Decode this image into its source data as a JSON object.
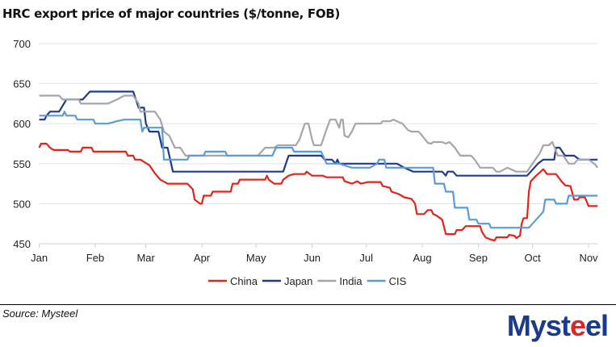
{
  "chart_data": {
    "type": "line",
    "title": "HRC export price of major countries ($/tonne, FOB)",
    "xlabel": "",
    "ylabel": "",
    "ylim": [
      450,
      700
    ],
    "yticks": [
      450,
      500,
      550,
      600,
      650,
      700
    ],
    "xlim": [
      "01-01",
      "11-06"
    ],
    "xticks": [
      {
        "date": "01-01",
        "label": "Jan"
      },
      {
        "date": "02-01",
        "label": "Feb"
      },
      {
        "date": "03-01",
        "label": "Mar"
      },
      {
        "date": "04-01",
        "label": "Apr"
      },
      {
        "date": "05-01",
        "label": "May"
      },
      {
        "date": "06-01",
        "label": "Jun"
      },
      {
        "date": "07-01",
        "label": "Jul"
      },
      {
        "date": "08-01",
        "label": "Aug"
      },
      {
        "date": "09-01",
        "label": "Sep"
      },
      {
        "date": "10-01",
        "label": "Oct"
      },
      {
        "date": "11-01",
        "label": "Nov"
      }
    ],
    "grid": "horizontal",
    "legend_position": "bottom",
    "series": [
      {
        "name": "China",
        "color": "#e0251b",
        "points": [
          [
            "01-01",
            570
          ],
          [
            "01-02",
            575
          ],
          [
            "01-05",
            575
          ],
          [
            "01-07",
            570
          ],
          [
            "01-09",
            567
          ],
          [
            "01-17",
            567
          ],
          [
            "01-18",
            565
          ],
          [
            "01-24",
            565
          ],
          [
            "01-25",
            570
          ],
          [
            "01-30",
            570
          ],
          [
            "01-31",
            565
          ],
          [
            "02-18",
            565
          ],
          [
            "02-19",
            560
          ],
          [
            "02-22",
            560
          ],
          [
            "02-23",
            555
          ],
          [
            "02-26",
            555
          ],
          [
            "03-03",
            548
          ],
          [
            "03-06",
            538
          ],
          [
            "03-09",
            530
          ],
          [
            "03-13",
            525
          ],
          [
            "03-24",
            525
          ],
          [
            "03-27",
            518
          ],
          [
            "03-28",
            505
          ],
          [
            "03-31",
            500
          ],
          [
            "04-01",
            500
          ],
          [
            "04-02",
            510
          ],
          [
            "04-06",
            510
          ],
          [
            "04-07",
            515
          ],
          [
            "04-17",
            515
          ],
          [
            "04-18",
            525
          ],
          [
            "04-21",
            525
          ],
          [
            "04-22",
            530
          ],
          [
            "05-06",
            530
          ],
          [
            "05-07",
            535
          ],
          [
            "05-08",
            530
          ],
          [
            "05-11",
            525
          ],
          [
            "05-15",
            525
          ],
          [
            "05-16",
            530
          ],
          [
            "05-19",
            535
          ],
          [
            "05-22",
            537
          ],
          [
            "05-28",
            537
          ],
          [
            "05-29",
            540
          ],
          [
            "06-01",
            535
          ],
          [
            "06-07",
            535
          ],
          [
            "06-09",
            533
          ],
          [
            "06-18",
            533
          ],
          [
            "06-19",
            528
          ],
          [
            "06-23",
            525
          ],
          [
            "06-26",
            528
          ],
          [
            "06-28",
            525
          ],
          [
            "07-02",
            527
          ],
          [
            "07-09",
            527
          ],
          [
            "07-10",
            522
          ],
          [
            "07-14",
            520
          ],
          [
            "07-15",
            515
          ],
          [
            "07-19",
            512
          ],
          [
            "07-22",
            508
          ],
          [
            "07-26",
            506
          ],
          [
            "07-28",
            500
          ],
          [
            "07-29",
            487
          ],
          [
            "08-02",
            487
          ],
          [
            "08-04",
            492
          ],
          [
            "08-06",
            492
          ],
          [
            "08-07",
            487
          ],
          [
            "08-09",
            485
          ],
          [
            "08-12",
            480
          ],
          [
            "08-14",
            462
          ],
          [
            "08-19",
            462
          ],
          [
            "08-20",
            467
          ],
          [
            "08-23",
            467
          ],
          [
            "08-25",
            472
          ],
          [
            "09-02",
            472
          ],
          [
            "09-03",
            465
          ],
          [
            "09-05",
            458
          ],
          [
            "09-08",
            455
          ],
          [
            "09-10",
            454
          ],
          [
            "09-11",
            458
          ],
          [
            "09-17",
            458
          ],
          [
            "09-18",
            461
          ],
          [
            "09-21",
            460
          ],
          [
            "09-22",
            457
          ],
          [
            "09-24",
            460
          ],
          [
            "09-25",
            475
          ],
          [
            "09-26",
            482
          ],
          [
            "09-28",
            482
          ],
          [
            "09-29",
            515
          ],
          [
            "09-30",
            528
          ],
          [
            "10-03",
            535
          ],
          [
            "10-07",
            543
          ],
          [
            "10-09",
            537
          ],
          [
            "10-14",
            537
          ],
          [
            "10-17",
            528
          ],
          [
            "10-19",
            523
          ],
          [
            "10-22",
            522
          ],
          [
            "10-24",
            505
          ],
          [
            "10-26",
            505
          ],
          [
            "10-27",
            508
          ],
          [
            "10-30",
            508
          ],
          [
            "11-01",
            497
          ],
          [
            "11-06",
            497
          ]
        ]
      },
      {
        "name": "Japan",
        "color": "#1f3a8a",
        "points": [
          [
            "01-01",
            605
          ],
          [
            "01-04",
            605
          ],
          [
            "01-05",
            610
          ],
          [
            "01-07",
            615
          ],
          [
            "01-12",
            615
          ],
          [
            "01-16",
            630
          ],
          [
            "01-25",
            630
          ],
          [
            "01-27",
            635
          ],
          [
            "01-29",
            640
          ],
          [
            "02-22",
            640
          ],
          [
            "02-25",
            620
          ],
          [
            "02-28",
            620
          ],
          [
            "03-01",
            600
          ],
          [
            "03-03",
            590
          ],
          [
            "03-08",
            590
          ],
          [
            "03-10",
            570
          ],
          [
            "03-13",
            570
          ],
          [
            "03-16",
            540
          ],
          [
            "05-16",
            540
          ],
          [
            "05-19",
            560
          ],
          [
            "06-06",
            560
          ],
          [
            "06-08",
            555
          ],
          [
            "06-12",
            555
          ],
          [
            "06-14",
            550
          ],
          [
            "06-15",
            555
          ],
          [
            "06-16",
            550
          ],
          [
            "07-18",
            550
          ],
          [
            "07-22",
            545
          ],
          [
            "07-27",
            540
          ],
          [
            "08-12",
            540
          ],
          [
            "08-14",
            535
          ],
          [
            "08-15",
            540
          ],
          [
            "08-18",
            540
          ],
          [
            "08-20",
            535
          ],
          [
            "09-28",
            535
          ],
          [
            "10-04",
            550
          ],
          [
            "10-07",
            555
          ],
          [
            "10-13",
            555
          ],
          [
            "10-14",
            570
          ],
          [
            "10-16",
            570
          ],
          [
            "10-19",
            560
          ],
          [
            "10-24",
            560
          ],
          [
            "10-27",
            555
          ],
          [
            "11-06",
            555
          ]
        ]
      },
      {
        "name": "India",
        "color": "#a6a6a6",
        "points": [
          [
            "01-01",
            635
          ],
          [
            "01-12",
            635
          ],
          [
            "01-14",
            630
          ],
          [
            "01-23",
            630
          ],
          [
            "01-24",
            625
          ],
          [
            "02-08",
            625
          ],
          [
            "02-13",
            630
          ],
          [
            "02-17",
            635
          ],
          [
            "02-22",
            635
          ],
          [
            "02-25",
            625
          ],
          [
            "02-26",
            615
          ],
          [
            "03-06",
            615
          ],
          [
            "03-09",
            605
          ],
          [
            "03-11",
            590
          ],
          [
            "03-14",
            585
          ],
          [
            "03-17",
            570
          ],
          [
            "03-20",
            570
          ],
          [
            "03-23",
            560
          ],
          [
            "05-02",
            560
          ],
          [
            "05-06",
            570
          ],
          [
            "05-11",
            570
          ],
          [
            "05-13",
            573
          ],
          [
            "05-23",
            573
          ],
          [
            "05-25",
            580
          ],
          [
            "05-28",
            600
          ],
          [
            "05-30",
            600
          ],
          [
            "06-01",
            580
          ],
          [
            "06-02",
            573
          ],
          [
            "06-06",
            573
          ],
          [
            "06-09",
            593
          ],
          [
            "06-11",
            605
          ],
          [
            "06-14",
            605
          ],
          [
            "06-16",
            595
          ],
          [
            "06-17",
            605
          ],
          [
            "06-18",
            605
          ],
          [
            "06-19",
            585
          ],
          [
            "06-21",
            583
          ],
          [
            "06-23",
            590
          ],
          [
            "06-25",
            600
          ],
          [
            "07-09",
            600
          ],
          [
            "07-10",
            603
          ],
          [
            "07-14",
            603
          ],
          [
            "07-16",
            605
          ],
          [
            "07-18",
            603
          ],
          [
            "07-21",
            600
          ],
          [
            "07-24",
            592
          ],
          [
            "07-26",
            590
          ],
          [
            "07-30",
            590
          ],
          [
            "08-02",
            582
          ],
          [
            "08-04",
            576
          ],
          [
            "08-06",
            575
          ],
          [
            "08-07",
            577
          ],
          [
            "08-12",
            577
          ],
          [
            "08-14",
            575
          ],
          [
            "08-16",
            577
          ],
          [
            "08-19",
            570
          ],
          [
            "08-22",
            560
          ],
          [
            "08-28",
            560
          ],
          [
            "08-30",
            555
          ],
          [
            "09-02",
            545
          ],
          [
            "09-09",
            545
          ],
          [
            "09-11",
            540
          ],
          [
            "09-13",
            540
          ],
          [
            "09-17",
            545
          ],
          [
            "09-22",
            540
          ],
          [
            "09-28",
            540
          ],
          [
            "10-01",
            550
          ],
          [
            "10-05",
            563
          ],
          [
            "10-07",
            573
          ],
          [
            "10-10",
            573
          ],
          [
            "10-12",
            577
          ],
          [
            "10-15",
            560
          ],
          [
            "10-18",
            560
          ],
          [
            "10-21",
            550
          ],
          [
            "10-24",
            550
          ],
          [
            "10-26",
            555
          ],
          [
            "11-01",
            555
          ],
          [
            "11-03",
            552
          ],
          [
            "11-05",
            548
          ],
          [
            "11-06",
            545
          ]
        ]
      },
      {
        "name": "CIS",
        "color": "#5b9bd5",
        "points": [
          [
            "01-01",
            610
          ],
          [
            "01-14",
            610
          ],
          [
            "01-15",
            615
          ],
          [
            "01-16",
            610
          ],
          [
            "01-21",
            610
          ],
          [
            "01-22",
            605
          ],
          [
            "01-31",
            605
          ],
          [
            "02-01",
            600
          ],
          [
            "02-08",
            600
          ],
          [
            "02-13",
            603
          ],
          [
            "02-17",
            605
          ],
          [
            "02-26",
            605
          ],
          [
            "02-27",
            590
          ],
          [
            "02-28",
            595
          ],
          [
            "03-10",
            595
          ],
          [
            "03-11",
            555
          ],
          [
            "03-24",
            555
          ],
          [
            "03-25",
            560
          ],
          [
            "04-02",
            560
          ],
          [
            "04-03",
            565
          ],
          [
            "04-14",
            565
          ],
          [
            "04-15",
            560
          ],
          [
            "05-10",
            560
          ],
          [
            "05-12",
            570
          ],
          [
            "05-21",
            570
          ],
          [
            "05-22",
            565
          ],
          [
            "06-06",
            565
          ],
          [
            "06-09",
            550
          ],
          [
            "06-16",
            550
          ],
          [
            "06-23",
            545
          ],
          [
            "07-03",
            545
          ],
          [
            "07-07",
            550
          ],
          [
            "07-08",
            555
          ],
          [
            "07-11",
            555
          ],
          [
            "07-12",
            545
          ],
          [
            "08-07",
            545
          ],
          [
            "08-08",
            525
          ],
          [
            "08-13",
            525
          ],
          [
            "08-14",
            515
          ],
          [
            "08-18",
            515
          ],
          [
            "08-19",
            495
          ],
          [
            "08-26",
            495
          ],
          [
            "08-27",
            480
          ],
          [
            "08-31",
            480
          ],
          [
            "09-01",
            475
          ],
          [
            "09-07",
            475
          ],
          [
            "09-08",
            470
          ],
          [
            "09-29",
            470
          ],
          [
            "10-03",
            480
          ],
          [
            "10-07",
            490
          ],
          [
            "10-08",
            505
          ],
          [
            "10-13",
            505
          ],
          [
            "10-14",
            500
          ],
          [
            "10-20",
            500
          ],
          [
            "10-21",
            510
          ],
          [
            "11-06",
            510
          ]
        ]
      }
    ]
  },
  "footer": {
    "source": "Source: Mysteel",
    "logo_text": "Mysteel"
  }
}
